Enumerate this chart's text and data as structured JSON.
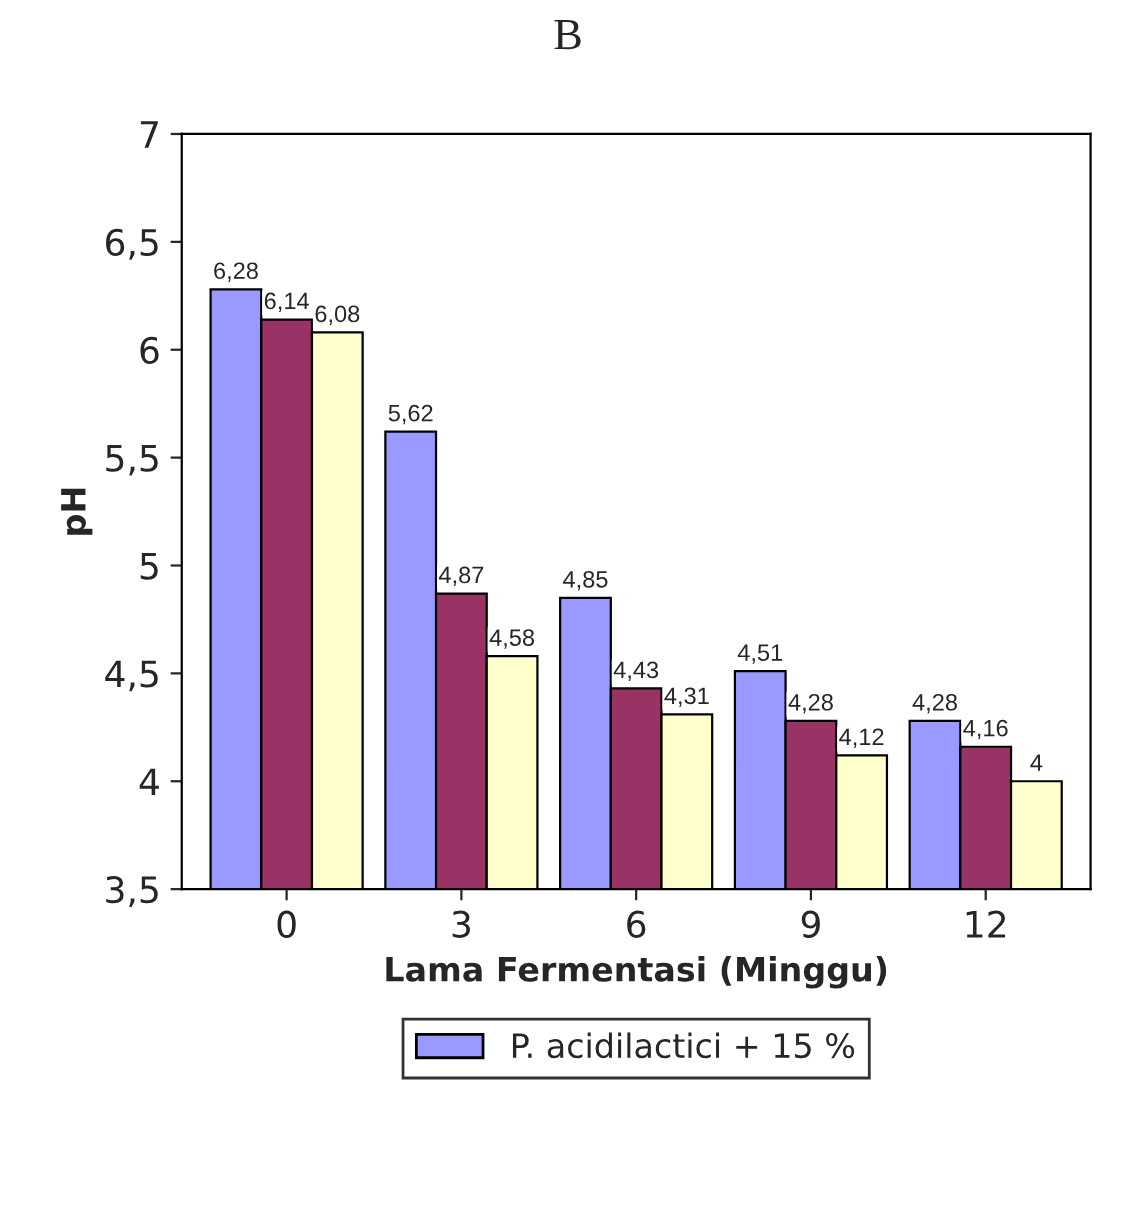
{
  "chart_data": {
    "type": "bar",
    "title": "B",
    "xlabel": "Lama Fermentasi (Minggu)",
    "ylabel": "pH",
    "categories": [
      "0",
      "3",
      "6",
      "9",
      "12"
    ],
    "series": [
      {
        "name": "P. acidilactici + 15 %",
        "color": "#9999ff",
        "values": [
          6.28,
          5.62,
          4.85,
          4.51,
          4.28
        ],
        "value_labels": [
          "6,28",
          "5,62",
          "4,85",
          "4,51",
          "4,28"
        ]
      },
      {
        "color": "#993366",
        "values": [
          6.14,
          4.87,
          4.43,
          4.28,
          4.16
        ],
        "value_labels": [
          "6,14",
          "4,87",
          "4,43",
          "4,28",
          "4,16"
        ]
      },
      {
        "color": "#ffffcc",
        "values": [
          6.08,
          4.58,
          4.31,
          4.12,
          4
        ],
        "value_labels": [
          "6,08",
          "4,58",
          "4,31",
          "4,12",
          "4"
        ]
      }
    ],
    "ylim": [
      3.5,
      7
    ],
    "yticks": [
      {
        "value": 3.5,
        "label": "3,5"
      },
      {
        "value": 4,
        "label": "4"
      },
      {
        "value": 4.5,
        "label": "4,5"
      },
      {
        "value": 5,
        "label": "5"
      },
      {
        "value": 5.5,
        "label": "5,5"
      },
      {
        "value": 6,
        "label": "6"
      },
      {
        "value": 6.5,
        "label": "6,5"
      },
      {
        "value": 7,
        "label": "7"
      }
    ],
    "grid": false,
    "legend": "bottom"
  }
}
